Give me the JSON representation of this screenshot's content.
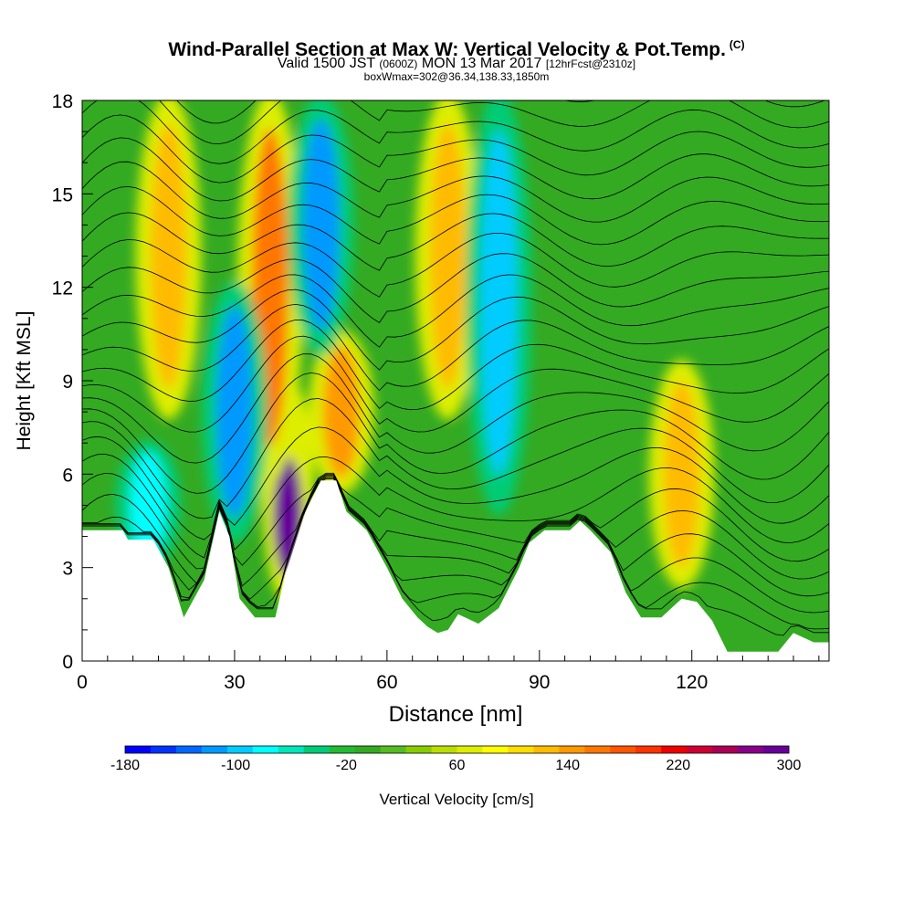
{
  "title": {
    "main": "Wind-Parallel Section at Max W: Vertical Velocity & Pot.Temp.",
    "copyright": "(C)",
    "valid_prefix": "Valid 1500 JST",
    "valid_utc": "(0600Z)",
    "valid_date": "MON 13 Mar 2017",
    "forecast": "[12hrFcst@2310z]",
    "boxinfo": "boxWmax=302@36.34,138.33,1850m"
  },
  "chart_data": {
    "type": "heatmap",
    "title": "Wind-Parallel Section at Max W: Vertical Velocity & Pot.Temp.",
    "xlabel": "Distance [nm]",
    "ylabel": "Height [Kft MSL]",
    "xlim": [
      0,
      147
    ],
    "ylim": [
      0,
      18
    ],
    "x_ticks": [
      0,
      30,
      60,
      90,
      120
    ],
    "y_ticks": [
      0,
      3,
      6,
      9,
      12,
      15,
      18
    ],
    "colorbar": {
      "label": "Vertical Velocity [cm/s]",
      "tick_labels": [
        -180,
        -100,
        -20,
        60,
        140,
        220,
        300
      ],
      "colors": [
        "#0000ff",
        "#0033ff",
        "#0066ff",
        "#0099ff",
        "#00ccff",
        "#00ffff",
        "#00e6bb",
        "#00cc77",
        "#22bb33",
        "#33aa22",
        "#55bb22",
        "#88cc00",
        "#bbdd00",
        "#ddee00",
        "#ffff00",
        "#ffdd00",
        "#ffbb00",
        "#ff9900",
        "#ff7700",
        "#ff5500",
        "#ff3300",
        "#ee0000",
        "#cc0033",
        "#aa0055",
        "#880088",
        "#660099"
      ]
    },
    "terrain_kft": [
      [
        0,
        4.2
      ],
      [
        8,
        4.2
      ],
      [
        9,
        3.9
      ],
      [
        14,
        3.9
      ],
      [
        17,
        3.0
      ],
      [
        20,
        1.4
      ],
      [
        24,
        2.6
      ],
      [
        27,
        4.8
      ],
      [
        29,
        4.0
      ],
      [
        31,
        2.0
      ],
      [
        34,
        1.4
      ],
      [
        38,
        1.4
      ],
      [
        40,
        2.8
      ],
      [
        44,
        4.8
      ],
      [
        47,
        5.8
      ],
      [
        50,
        5.8
      ],
      [
        52,
        4.8
      ],
      [
        56,
        4.2
      ],
      [
        60,
        3.0
      ],
      [
        63,
        2.0
      ],
      [
        66,
        1.4
      ],
      [
        68,
        1.1
      ],
      [
        70,
        0.9
      ],
      [
        72,
        1.0
      ],
      [
        74,
        1.5
      ],
      [
        78,
        1.2
      ],
      [
        82,
        1.7
      ],
      [
        86,
        3.0
      ],
      [
        88,
        3.8
      ],
      [
        91,
        4.2
      ],
      [
        96,
        4.2
      ],
      [
        98,
        4.5
      ],
      [
        100,
        4.2
      ],
      [
        104,
        3.5
      ],
      [
        107,
        2.2
      ],
      [
        110,
        1.4
      ],
      [
        114,
        1.4
      ],
      [
        118,
        2.0
      ],
      [
        121,
        1.9
      ],
      [
        124,
        1.3
      ],
      [
        127,
        0.3
      ],
      [
        137,
        0.3
      ],
      [
        140,
        0.9
      ],
      [
        144,
        0.6
      ],
      [
        147,
        0.6
      ]
    ],
    "vertical_velocity_features": [
      {
        "x": 40.5,
        "z_min": 2.0,
        "z_max": 9.0,
        "peak_cm_s": 302
      },
      {
        "x": 51,
        "z_min": 5.5,
        "z_max": 10.5,
        "peak_cm_s": 140
      },
      {
        "x": 118,
        "z_min": 2.5,
        "z_max": 9.5,
        "peak_cm_s": 120
      },
      {
        "x": 37,
        "z_min": 6.0,
        "z_max": 18.0,
        "peak_cm_s": 160
      },
      {
        "x": 17,
        "z_min": 8.0,
        "z_max": 18.0,
        "peak_cm_s": 120
      },
      {
        "x": 72,
        "z_min": 8.0,
        "z_max": 18.0,
        "peak_cm_s": 120
      },
      {
        "x": 30,
        "z_min": 4.0,
        "z_max": 12.0,
        "peak_cm_s": -120
      },
      {
        "x": 47,
        "z_min": 10.0,
        "z_max": 18.0,
        "peak_cm_s": -120
      },
      {
        "x": 82,
        "z_min": 5.0,
        "z_max": 18.0,
        "peak_cm_s": -100
      },
      {
        "x": 13,
        "z_min": 3.0,
        "z_max": 7.0,
        "peak_cm_s": -80
      }
    ],
    "contour": {
      "variable": "Potential Temperature",
      "count": 26
    }
  }
}
